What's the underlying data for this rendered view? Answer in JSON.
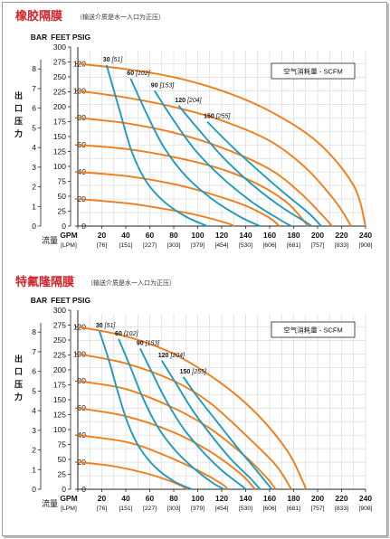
{
  "chart_data": [
    {
      "type": "line",
      "title": "橡胶隔膜",
      "subtitle": "（输送介质是水一入口为正压）",
      "ylabel": "出口压力",
      "xlabel": "流量",
      "y_unit_headers": [
        "BAR",
        "FEET",
        "PSIG"
      ],
      "psig_ticks": [
        0,
        20,
        40,
        60,
        80,
        100,
        120
      ],
      "feet_ticks": [
        0,
        25,
        50,
        75,
        100,
        125,
        150,
        175,
        200,
        225,
        250,
        275,
        300
      ],
      "bar_ticks": [
        0,
        1,
        2,
        3,
        4,
        5,
        6,
        7,
        8
      ],
      "gpm_ticks": [
        0,
        20,
        40,
        60,
        80,
        100,
        120,
        140,
        160,
        180,
        200,
        220,
        240
      ],
      "lpm_ticks": [
        "[LPM]",
        "[76]",
        "[151]",
        "[227]",
        "[303]",
        "[379]",
        "[454]",
        "[530]",
        "[606]",
        "[681]",
        "[757]",
        "[833]",
        "[908]"
      ],
      "xlim": [
        0,
        240
      ],
      "ylim": [
        0,
        120
      ],
      "legend": "空气消耗量 - SCFM",
      "pressure_series": [
        {
          "points": [
            [
              0,
              120
            ],
            [
              40,
              116
            ],
            [
              80,
              110
            ],
            [
              120,
              100
            ],
            [
              160,
              85
            ],
            [
              200,
              62
            ],
            [
              230,
              30
            ],
            [
              240,
              0
            ]
          ]
        },
        {
          "points": [
            [
              0,
              100
            ],
            [
              40,
              95
            ],
            [
              80,
              88
            ],
            [
              120,
              78
            ],
            [
              160,
              63
            ],
            [
              190,
              43
            ],
            [
              215,
              18
            ],
            [
              228,
              0
            ]
          ]
        },
        {
          "points": [
            [
              0,
              80
            ],
            [
              40,
              76
            ],
            [
              80,
              69
            ],
            [
              120,
              58
            ],
            [
              160,
              42
            ],
            [
              185,
              25
            ],
            [
              205,
              7
            ],
            [
              212,
              0
            ]
          ]
        },
        {
          "points": [
            [
              0,
              60
            ],
            [
              40,
              57
            ],
            [
              80,
              51
            ],
            [
              120,
              42
            ],
            [
              150,
              31
            ],
            [
              175,
              17
            ],
            [
              192,
              0
            ]
          ]
        },
        {
          "points": [
            [
              0,
              40
            ],
            [
              40,
              37
            ],
            [
              80,
              31
            ],
            [
              110,
              24
            ],
            [
              140,
              15
            ],
            [
              160,
              6
            ],
            [
              168,
              0
            ]
          ]
        },
        {
          "points": [
            [
              0,
              20
            ],
            [
              40,
              17
            ],
            [
              70,
              13
            ],
            [
              100,
              8
            ],
            [
              125,
              2
            ],
            [
              130,
              0
            ]
          ]
        }
      ],
      "air_series": [
        {
          "label": "30",
          "label_alt": "[51]",
          "points": [
            [
              24,
              119
            ],
            [
              35,
              85
            ],
            [
              45,
              55
            ],
            [
              57,
              33
            ],
            [
              72,
              18
            ],
            [
              90,
              7
            ],
            [
              108,
              0
            ]
          ]
        },
        {
          "label": "60",
          "label_alt": "[102]",
          "points": [
            [
              44,
              109
            ],
            [
              58,
              82
            ],
            [
              72,
              58
            ],
            [
              90,
              37
            ],
            [
              112,
              20
            ],
            [
              135,
              7
            ],
            [
              152,
              0
            ]
          ]
        },
        {
          "label": "90",
          "label_alt": "[153]",
          "points": [
            [
              64,
              100
            ],
            [
              80,
              78
            ],
            [
              98,
              56
            ],
            [
              120,
              36
            ],
            [
              145,
              18
            ],
            [
              168,
              5
            ],
            [
              178,
              0
            ]
          ]
        },
        {
          "label": "120",
          "label_alt": "[204]",
          "points": [
            [
              84,
              89
            ],
            [
              102,
              70
            ],
            [
              122,
              50
            ],
            [
              145,
              31
            ],
            [
              170,
              14
            ],
            [
              190,
              3
            ],
            [
              195,
              0
            ]
          ]
        },
        {
          "label": "150",
          "label_alt": "[255]",
          "points": [
            [
              108,
              77
            ],
            [
              126,
              61
            ],
            [
              148,
              43
            ],
            [
              170,
              26
            ],
            [
              192,
              10
            ],
            [
              203,
              0
            ]
          ]
        }
      ],
      "colors": {
        "pressure": "#ef7d1a",
        "air": "#1f9bbd"
      }
    },
    {
      "type": "line",
      "title": "特氟隆隔膜",
      "subtitle": "（输送介质是水一入口为正压）",
      "ylabel": "出口压力",
      "xlabel": "流量",
      "y_unit_headers": [
        "BAR",
        "FEET",
        "PSIG"
      ],
      "psig_ticks": [
        0,
        20,
        40,
        60,
        80,
        100,
        120
      ],
      "feet_ticks": [
        0,
        25,
        50,
        75,
        100,
        125,
        150,
        175,
        200,
        225,
        250,
        275,
        300
      ],
      "bar_ticks": [
        0,
        1,
        2,
        3,
        4,
        5,
        6,
        7,
        8
      ],
      "gpm_ticks": [
        0,
        20,
        40,
        60,
        80,
        100,
        120,
        140,
        160,
        180,
        200,
        220,
        240
      ],
      "lpm_ticks": [
        "[LPM]",
        "[76]",
        "[151]",
        "[227]",
        "[303]",
        "[379]",
        "[454]",
        "[530]",
        "[606]",
        "[681]",
        "[757]",
        "[833]",
        "[908]"
      ],
      "xlim": [
        0,
        240
      ],
      "ylim": [
        0,
        120
      ],
      "legend": "空气消耗量 - SCFM",
      "pressure_series": [
        {
          "points": [
            [
              0,
              120
            ],
            [
              40,
              113
            ],
            [
              80,
              100
            ],
            [
              120,
              78
            ],
            [
              150,
              55
            ],
            [
              175,
              28
            ],
            [
              188,
              5
            ],
            [
              190,
              0
            ]
          ]
        },
        {
          "points": [
            [
              0,
              100
            ],
            [
              40,
              93
            ],
            [
              80,
              80
            ],
            [
              110,
              64
            ],
            [
              140,
              40
            ],
            [
              165,
              18
            ],
            [
              178,
              0
            ]
          ]
        },
        {
          "points": [
            [
              0,
              80
            ],
            [
              40,
              74
            ],
            [
              80,
              60
            ],
            [
              110,
              45
            ],
            [
              140,
              24
            ],
            [
              158,
              8
            ],
            [
              165,
              0
            ]
          ]
        },
        {
          "points": [
            [
              0,
              60
            ],
            [
              40,
              54
            ],
            [
              80,
              42
            ],
            [
              110,
              28
            ],
            [
              135,
              12
            ],
            [
              148,
              0
            ]
          ]
        },
        {
          "points": [
            [
              0,
              40
            ],
            [
              40,
              35
            ],
            [
              70,
              26
            ],
            [
              100,
              14
            ],
            [
              120,
              4
            ],
            [
              125,
              0
            ]
          ]
        },
        {
          "points": [
            [
              0,
              20
            ],
            [
              30,
              17
            ],
            [
              60,
              11
            ],
            [
              80,
              5
            ],
            [
              92,
              0
            ]
          ]
        }
      ],
      "air_series": [
        {
          "label": "30",
          "label_alt": "[51]",
          "points": [
            [
              18,
              117
            ],
            [
              26,
              95
            ],
            [
              34,
              70
            ],
            [
              42,
              48
            ],
            [
              52,
              30
            ],
            [
              65,
              16
            ],
            [
              80,
              6
            ],
            [
              95,
              0
            ]
          ]
        },
        {
          "label": "60",
          "label_alt": "[102]",
          "points": [
            [
              34,
              111
            ],
            [
              44,
              90
            ],
            [
              54,
              68
            ],
            [
              66,
              47
            ],
            [
              80,
              30
            ],
            [
              96,
              16
            ],
            [
              112,
              5
            ],
            [
              122,
              0
            ]
          ]
        },
        {
          "label": "90",
          "label_alt": "[153]",
          "points": [
            [
              52,
              104
            ],
            [
              62,
              86
            ],
            [
              74,
              65
            ],
            [
              88,
              45
            ],
            [
              104,
              28
            ],
            [
              120,
              14
            ],
            [
              136,
              3
            ],
            [
              140,
              0
            ]
          ]
        },
        {
          "label": "120",
          "label_alt": "[204]",
          "points": [
            [
              70,
              95
            ],
            [
              82,
              78
            ],
            [
              96,
              58
            ],
            [
              112,
              39
            ],
            [
              128,
              22
            ],
            [
              144,
              8
            ],
            [
              152,
              0
            ]
          ]
        },
        {
          "label": "150",
          "label_alt": "[255]",
          "points": [
            [
              88,
              83
            ],
            [
              100,
              68
            ],
            [
              116,
              50
            ],
            [
              132,
              32
            ],
            [
              148,
              15
            ],
            [
              160,
              2
            ],
            [
              162,
              0
            ]
          ]
        }
      ],
      "colors": {
        "pressure": "#ef7d1a",
        "air": "#1f9bbd"
      }
    }
  ]
}
